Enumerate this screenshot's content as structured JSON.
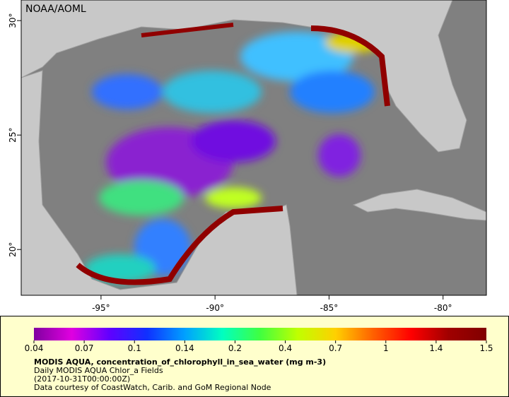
{
  "map": {
    "credit": "NOAA/AOML",
    "xlim": [
      -98.5,
      -78.1
    ],
    "ylim": [
      18.0,
      30.9
    ],
    "xticks": [
      {
        "value": -95,
        "label": "-95°"
      },
      {
        "value": -90,
        "label": "-90°"
      },
      {
        "value": -85,
        "label": "-85°"
      },
      {
        "value": -80,
        "label": "-80°"
      }
    ],
    "yticks": [
      {
        "value": 20,
        "label": "20°"
      },
      {
        "value": 25,
        "label": "25°"
      },
      {
        "value": 30,
        "label": "30°"
      }
    ]
  },
  "colorbar": {
    "ticks": [
      0.04,
      0.07,
      0.1,
      0.14,
      0.2,
      0.4,
      0.7,
      1,
      1.4,
      1.5
    ],
    "colors": [
      "#8000a0",
      "#e000e0",
      "#6000ff",
      "#1030ff",
      "#00a0ff",
      "#00ffc0",
      "#40ff40",
      "#c0ff00",
      "#ffd000",
      "#ff6000",
      "#ff0000",
      "#a00000",
      "#800000"
    ]
  },
  "caption": {
    "title": "MODIS AQUA, concentration_of_chlorophyll_in_sea_water (mg m-3)",
    "lines": [
      "Daily MODIS AQUA Chlor_a Fields",
      "(2017-10-31T00:00:00Z)",
      "Data courtesy of CoastWatch, Carib. and GoM Regional Node"
    ]
  }
}
